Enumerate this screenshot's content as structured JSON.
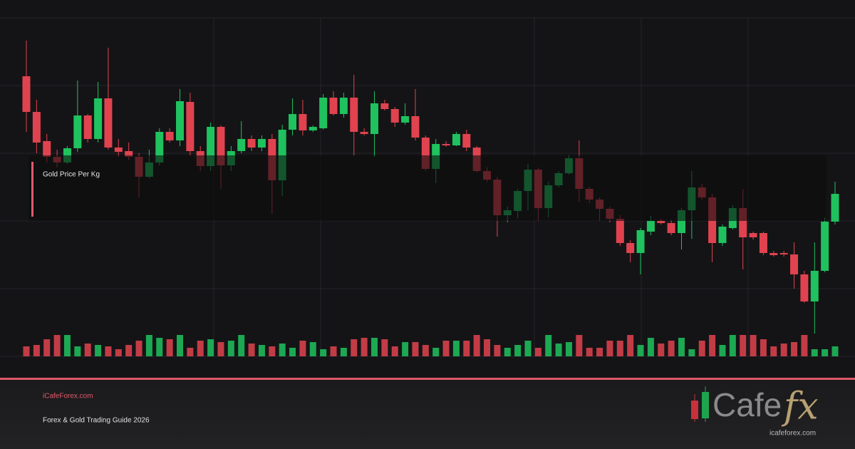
{
  "chart_data": {
    "type": "candlestick",
    "title": "Gold Price Per Kg",
    "up_color": "#1fc25e",
    "down_color": "#e0434f",
    "ylim": [
      0,
      500
    ],
    "volume_ylim": [
      0,
      100
    ],
    "open": [
      393,
      343,
      302,
      280,
      272,
      292,
      338,
      305,
      362,
      293,
      288,
      280,
      252,
      272,
      315,
      303,
      357,
      288,
      267,
      322,
      268,
      288,
      305,
      293,
      305,
      247,
      318,
      340,
      317,
      320,
      363,
      340,
      363,
      315,
      312,
      355,
      347,
      328,
      337,
      307,
      263,
      298,
      296,
      312,
      293,
      260,
      248,
      198,
      204,
      232,
      262,
      208,
      240,
      257,
      278,
      235,
      220,
      207,
      193,
      159,
      145,
      175,
      190,
      187,
      173,
      205,
      237,
      223,
      159,
      180,
      208,
      173,
      173,
      145,
      145,
      143,
      115,
      77,
      120,
      189
    ],
    "high": [
      443,
      360,
      312,
      290,
      295,
      387,
      340,
      385,
      433,
      305,
      300,
      285,
      290,
      320,
      320,
      375,
      370,
      295,
      328,
      324,
      295,
      330,
      310,
      310,
      312,
      325,
      362,
      360,
      324,
      368,
      372,
      370,
      395,
      320,
      372,
      360,
      350,
      355,
      375,
      310,
      305,
      302,
      315,
      318,
      295,
      265,
      252,
      210,
      235,
      270,
      265,
      245,
      260,
      282,
      303,
      238,
      223,
      210,
      198,
      163,
      180,
      197,
      193,
      192,
      208,
      260,
      242,
      228,
      185,
      212,
      235,
      175,
      175,
      148,
      148,
      160,
      120,
      160,
      195,
      245
    ],
    "low": [
      315,
      285,
      272,
      265,
      270,
      287,
      300,
      300,
      290,
      280,
      275,
      223,
      250,
      268,
      300,
      295,
      282,
      260,
      260,
      235,
      260,
      285,
      288,
      288,
      200,
      225,
      310,
      310,
      315,
      318,
      338,
      335,
      282,
      310,
      280,
      345,
      322,
      325,
      303,
      260,
      243,
      294,
      295,
      288,
      258,
      245,
      168,
      188,
      194,
      205,
      190,
      195,
      237,
      255,
      217,
      215,
      190,
      188,
      155,
      132,
      115,
      170,
      185,
      170,
      150,
      165,
      220,
      132,
      155,
      178,
      122,
      164,
      142,
      140,
      140,
      95,
      75,
      32,
      118,
      185
    ],
    "close": [
      343,
      300,
      280,
      272,
      292,
      338,
      305,
      362,
      293,
      287,
      280,
      252,
      272,
      315,
      303,
      358,
      288,
      267,
      322,
      268,
      288,
      305,
      293,
      305,
      247,
      318,
      340,
      317,
      322,
      363,
      340,
      363,
      315,
      312,
      355,
      347,
      328,
      337,
      307,
      263,
      298,
      296,
      312,
      293,
      260,
      248,
      198,
      205,
      232,
      262,
      208,
      240,
      257,
      278,
      235,
      220,
      207,
      193,
      159,
      145,
      177,
      190,
      187,
      173,
      205,
      237,
      223,
      159,
      182,
      208,
      167,
      167,
      145,
      142,
      143,
      115,
      77,
      120,
      189,
      228
    ],
    "volume": [
      14,
      16,
      24,
      30,
      30,
      14,
      18,
      16,
      14,
      10,
      16,
      22,
      30,
      26,
      24,
      30,
      12,
      22,
      24,
      20,
      22,
      30,
      18,
      16,
      14,
      18,
      12,
      22,
      20,
      10,
      14,
      12,
      24,
      26,
      26,
      24,
      14,
      20,
      20,
      16,
      12,
      22,
      22,
      22,
      30,
      24,
      16,
      12,
      16,
      22,
      12,
      30,
      18,
      20,
      30,
      12,
      12,
      22,
      22,
      30,
      16,
      26,
      18,
      22,
      26,
      10,
      22,
      30,
      16,
      30,
      30,
      30,
      24,
      14,
      18,
      20,
      30,
      10,
      10,
      14
    ]
  },
  "footer": {
    "site": "iCafeForex.com",
    "subtitle": "Forex & Gold Trading Guide 2026"
  },
  "logo": {
    "word": "Cafe",
    "accent": "fx",
    "url": "icafeforex.com"
  }
}
